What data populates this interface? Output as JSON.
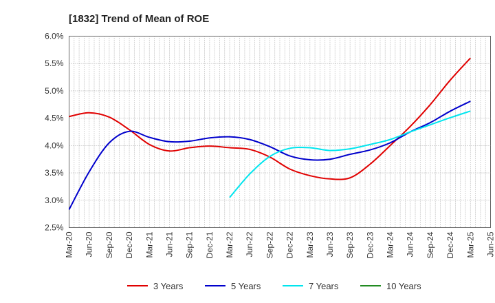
{
  "chart_data": {
    "type": "line",
    "title": "[1832]  Trend of Mean of ROE",
    "xlabel": "",
    "ylabel": "",
    "x_categories": [
      "Mar-20",
      "Jun-20",
      "Sep-20",
      "Dec-20",
      "Mar-21",
      "Jun-21",
      "Sep-21",
      "Dec-21",
      "Mar-22",
      "Jun-22",
      "Sep-22",
      "Dec-22",
      "Mar-23",
      "Jun-23",
      "Sep-23",
      "Dec-23",
      "Mar-24",
      "Jun-24",
      "Sep-24",
      "Dec-24",
      "Mar-25",
      "Jun-25"
    ],
    "ylim": [
      2.5,
      6.0
    ],
    "y_ticks": [
      "2.5%",
      "3.0%",
      "3.5%",
      "4.0%",
      "4.5%",
      "5.0%",
      "5.5%",
      "6.0%"
    ],
    "y_tick_values": [
      2.5,
      3.0,
      3.5,
      4.0,
      4.5,
      5.0,
      5.5,
      6.0
    ],
    "grid": true,
    "legend_position": "bottom",
    "series": [
      {
        "name": "3 Years",
        "color": "#e00000",
        "values": [
          4.53,
          4.6,
          4.52,
          4.29,
          4.02,
          3.9,
          3.96,
          3.99,
          3.96,
          3.93,
          3.79,
          3.57,
          3.45,
          3.39,
          3.41,
          3.66,
          4.0,
          4.35,
          4.75,
          5.2,
          5.6,
          null
        ]
      },
      {
        "name": "5 Years",
        "color": "#0000cc",
        "values": [
          2.83,
          3.52,
          4.05,
          4.26,
          4.15,
          4.07,
          4.08,
          4.14,
          4.16,
          4.11,
          3.98,
          3.81,
          3.74,
          3.75,
          3.84,
          3.92,
          4.05,
          4.25,
          4.42,
          4.63,
          4.81,
          null
        ]
      },
      {
        "name": "7 Years",
        "color": "#00e5ee",
        "values": [
          null,
          null,
          null,
          null,
          null,
          null,
          null,
          null,
          3.05,
          3.48,
          3.8,
          3.95,
          3.96,
          3.91,
          3.94,
          4.02,
          4.11,
          4.25,
          4.38,
          4.51,
          4.63,
          null
        ]
      },
      {
        "name": "10 Years",
        "color": "#228b22",
        "values": [
          null,
          null,
          null,
          null,
          null,
          null,
          null,
          null,
          null,
          null,
          null,
          null,
          null,
          null,
          null,
          null,
          null,
          null,
          null,
          null,
          null,
          null
        ]
      }
    ]
  }
}
